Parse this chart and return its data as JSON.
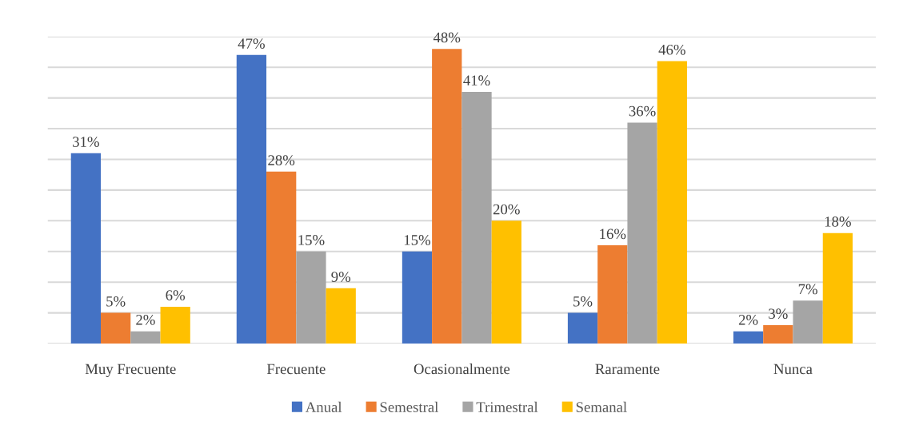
{
  "chart_data": {
    "type": "bar",
    "categories": [
      "Muy Frecuente",
      "Frecuente",
      "Ocasionalmente",
      "Raramente",
      "Nunca"
    ],
    "series": [
      {
        "name": "Anual",
        "color": "#4472c4",
        "values": [
          31,
          47,
          15,
          5,
          2
        ],
        "value_labels": [
          "31%",
          "47%",
          "15%",
          "5%",
          "2%"
        ]
      },
      {
        "name": "Semestral",
        "color": "#ed7d31",
        "values": [
          5,
          28,
          48,
          16,
          3
        ],
        "value_labels": [
          "5%",
          "28%",
          "48%",
          "16%",
          "3%"
        ]
      },
      {
        "name": "Trimestral",
        "color": "#a5a5a5",
        "values": [
          2,
          15,
          41,
          36,
          7
        ],
        "value_labels": [
          "2%",
          "15%",
          "41%",
          "36%",
          "7%"
        ]
      },
      {
        "name": "Semanal",
        "color": "#ffc000",
        "values": [
          6,
          9,
          20,
          46,
          18
        ],
        "value_labels": [
          "6%",
          "9%",
          "20%",
          "46%",
          "18%"
        ]
      }
    ],
    "ylim": [
      0,
      50
    ],
    "yticks": [
      {
        "value": 0,
        "label": null
      },
      {
        "value": 5,
        "label": null
      },
      {
        "value": 10,
        "label": null
      },
      {
        "value": 15,
        "label": null
      },
      {
        "value": 20,
        "label": null
      },
      {
        "value": 25,
        "label": null
      },
      {
        "value": 30,
        "label": null
      },
      {
        "value": 35,
        "label": null
      },
      {
        "value": 40,
        "label": null
      },
      {
        "value": 45,
        "label": null
      },
      {
        "value": 50,
        "label": null
      }
    ],
    "grid": "y",
    "legend": "bottom",
    "tick_labels": "x"
  }
}
